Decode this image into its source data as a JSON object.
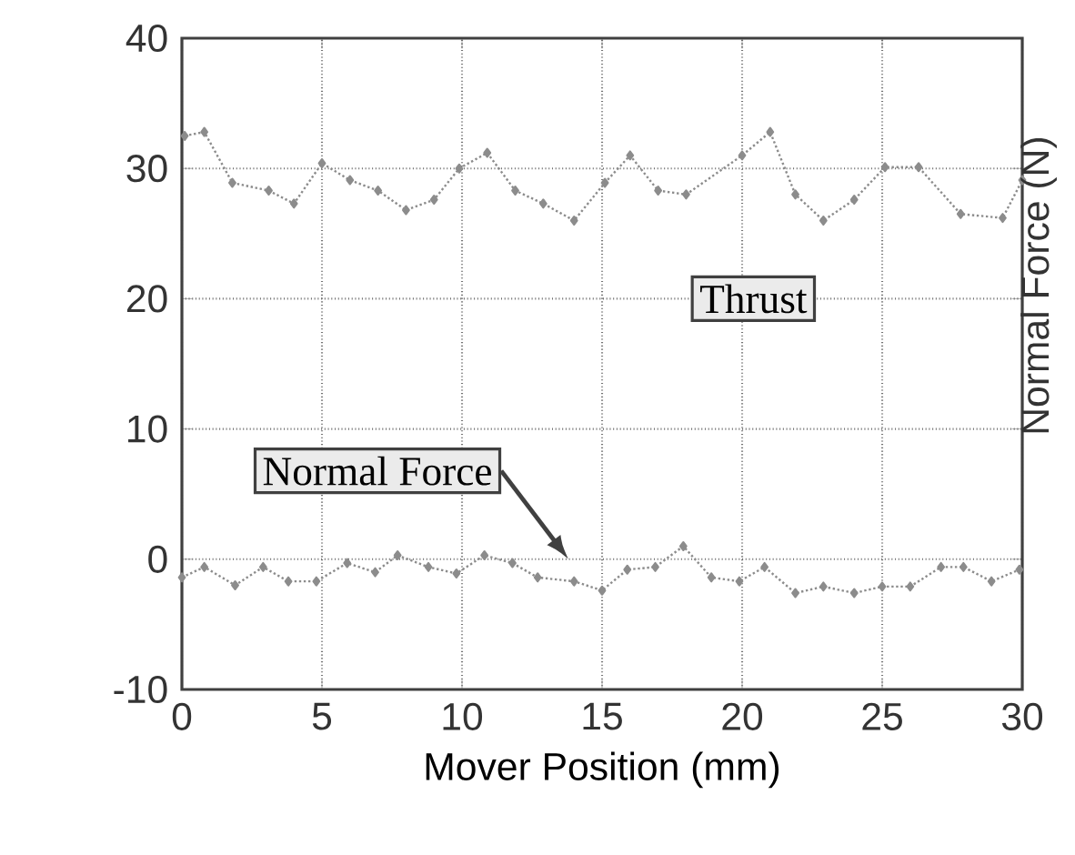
{
  "chart_data": {
    "type": "line",
    "xlabel": "Mover Position (mm)",
    "y2label": "Normal Force (N)",
    "xlim": [
      0,
      30
    ],
    "ylim": [
      -10,
      40
    ],
    "xticks": [
      0,
      5,
      10,
      15,
      20,
      25,
      30
    ],
    "yticks": [
      -10,
      0,
      10,
      20,
      30,
      40
    ],
    "grid": true,
    "marker": "diamond",
    "line_style": "dotted",
    "series": [
      {
        "color": "#8c8c8c",
        "x": [
          0.1,
          0.8,
          1.8,
          3.1,
          4.0,
          5.0,
          6.0,
          7.0,
          8.0,
          9.0,
          9.9,
          10.9,
          11.9,
          12.9,
          14.0,
          15.1,
          16.0,
          17.0,
          18.0,
          20.0,
          21.0,
          21.9,
          22.9,
          24.0,
          25.1,
          26.3,
          27.8,
          29.3,
          30.0
        ],
        "values": [
          32.5,
          32.8,
          28.9,
          28.3,
          27.3,
          30.4,
          29.1,
          28.3,
          26.8,
          27.6,
          30.0,
          31.2,
          28.3,
          27.3,
          26.0,
          28.9,
          31.0,
          28.3,
          28.0,
          31.0,
          32.8,
          28.0,
          26.0,
          27.6,
          30.1,
          30.1,
          26.5,
          26.2,
          29.1
        ]
      },
      {
        "color": "#8c8c8c",
        "x": [
          0.0,
          0.8,
          1.9,
          2.9,
          3.8,
          4.8,
          5.9,
          6.9,
          7.7,
          8.8,
          9.8,
          10.8,
          11.8,
          12.7,
          14.0,
          15.0,
          15.9,
          16.9,
          17.9,
          18.9,
          19.9,
          20.8,
          21.9,
          22.9,
          24.0,
          25.0,
          26.0,
          27.1,
          27.9,
          28.9,
          29.9
        ],
        "values": [
          -1.4,
          -0.6,
          -2.0,
          -0.6,
          -1.7,
          -1.7,
          -0.3,
          -1.0,
          0.3,
          -0.6,
          -1.1,
          0.3,
          -0.3,
          -1.4,
          -1.7,
          -2.4,
          -0.8,
          -0.6,
          1.0,
          -1.4,
          -1.7,
          -0.6,
          -2.6,
          -2.1,
          -2.6,
          -2.1,
          -2.1,
          -0.6,
          -0.6,
          -1.7,
          -0.8
        ]
      }
    ],
    "annotations": [
      "Thrust",
      "Normal Force"
    ]
  }
}
